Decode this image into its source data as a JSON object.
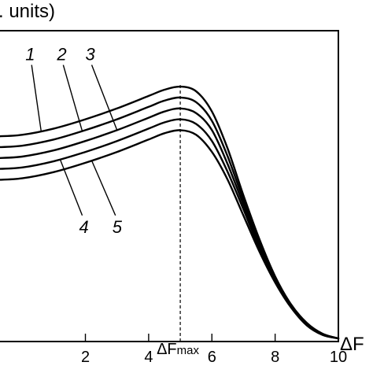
{
  "chart_data": {
    "type": "line",
    "ylabel_fragment": ". units)",
    "xlabel_fragment": "ΔF",
    "xlim": [
      -0.8,
      10
    ],
    "ylim": [
      0,
      1
    ],
    "grid": false,
    "x_ticks": [
      "2",
      "4",
      "6",
      "8",
      "10"
    ],
    "annotation": {
      "label": "ΔF",
      "subscript": "max",
      "x": 5.0
    },
    "series": [
      {
        "name": "1",
        "points": [
          [
            -0.8,
            0.66
          ],
          [
            0,
            0.665
          ],
          [
            1,
            0.685
          ],
          [
            2,
            0.715
          ],
          [
            3,
            0.75
          ],
          [
            4,
            0.79
          ],
          [
            4.5,
            0.81
          ],
          [
            5,
            0.82
          ],
          [
            5.5,
            0.805
          ],
          [
            6,
            0.74
          ],
          [
            6.5,
            0.62
          ],
          [
            7,
            0.47
          ],
          [
            7.5,
            0.33
          ],
          [
            8,
            0.21
          ],
          [
            8.5,
            0.12
          ],
          [
            9,
            0.06
          ],
          [
            9.5,
            0.025
          ],
          [
            10,
            0.01
          ]
        ]
      },
      {
        "name": "2",
        "points": [
          [
            -0.8,
            0.625
          ],
          [
            0,
            0.63
          ],
          [
            1,
            0.65
          ],
          [
            2,
            0.68
          ],
          [
            3,
            0.715
          ],
          [
            4,
            0.755
          ],
          [
            4.5,
            0.775
          ],
          [
            5,
            0.785
          ],
          [
            5.5,
            0.77
          ],
          [
            6,
            0.71
          ],
          [
            6.5,
            0.595
          ],
          [
            7,
            0.455
          ],
          [
            7.5,
            0.32
          ],
          [
            8,
            0.205
          ],
          [
            8.5,
            0.118
          ],
          [
            9,
            0.058
          ],
          [
            9.5,
            0.024
          ],
          [
            10,
            0.01
          ]
        ]
      },
      {
        "name": "3",
        "points": [
          [
            -0.8,
            0.59
          ],
          [
            0,
            0.595
          ],
          [
            1,
            0.615
          ],
          [
            2,
            0.645
          ],
          [
            3,
            0.68
          ],
          [
            4,
            0.72
          ],
          [
            4.5,
            0.74
          ],
          [
            5,
            0.75
          ],
          [
            5.5,
            0.735
          ],
          [
            6,
            0.68
          ],
          [
            6.5,
            0.57
          ],
          [
            7,
            0.44
          ],
          [
            7.5,
            0.31
          ],
          [
            8,
            0.2
          ],
          [
            8.5,
            0.115
          ],
          [
            9,
            0.056
          ],
          [
            9.5,
            0.023
          ],
          [
            10,
            0.01
          ]
        ]
      },
      {
        "name": "4",
        "points": [
          [
            -0.8,
            0.555
          ],
          [
            0,
            0.56
          ],
          [
            1,
            0.58
          ],
          [
            2,
            0.61
          ],
          [
            3,
            0.645
          ],
          [
            4,
            0.685
          ],
          [
            4.5,
            0.705
          ],
          [
            5,
            0.715
          ],
          [
            5.5,
            0.7
          ],
          [
            6,
            0.645
          ],
          [
            6.5,
            0.545
          ],
          [
            7,
            0.425
          ],
          [
            7.5,
            0.3
          ],
          [
            8,
            0.195
          ],
          [
            8.5,
            0.112
          ],
          [
            9,
            0.054
          ],
          [
            9.5,
            0.022
          ],
          [
            10,
            0.01
          ]
        ]
      },
      {
        "name": "5",
        "points": [
          [
            -0.8,
            0.52
          ],
          [
            0,
            0.525
          ],
          [
            1,
            0.545
          ],
          [
            2,
            0.575
          ],
          [
            3,
            0.61
          ],
          [
            4,
            0.65
          ],
          [
            4.5,
            0.67
          ],
          [
            5,
            0.68
          ],
          [
            5.5,
            0.665
          ],
          [
            6,
            0.61
          ],
          [
            6.5,
            0.52
          ],
          [
            7,
            0.405
          ],
          [
            7.5,
            0.29
          ],
          [
            8,
            0.19
          ],
          [
            8.5,
            0.11
          ],
          [
            9,
            0.052
          ],
          [
            9.5,
            0.021
          ],
          [
            10,
            0.01
          ]
        ]
      }
    ],
    "curve_labels": [
      {
        "text": "1",
        "series": 0,
        "at_x": 0.6,
        "label_x": 0.25,
        "label_y": 0.905
      },
      {
        "text": "2",
        "series": 1,
        "at_x": 1.9,
        "label_x": 1.25,
        "label_y": 0.905
      },
      {
        "text": "3",
        "series": 2,
        "at_x": 3.0,
        "label_x": 2.15,
        "label_y": 0.905
      },
      {
        "text": "4",
        "series": 3,
        "at_x": 1.2,
        "label_x": 1.95,
        "label_y": 0.35
      },
      {
        "text": "5",
        "series": 4,
        "at_x": 2.2,
        "label_x": 3.0,
        "label_y": 0.35
      }
    ]
  }
}
